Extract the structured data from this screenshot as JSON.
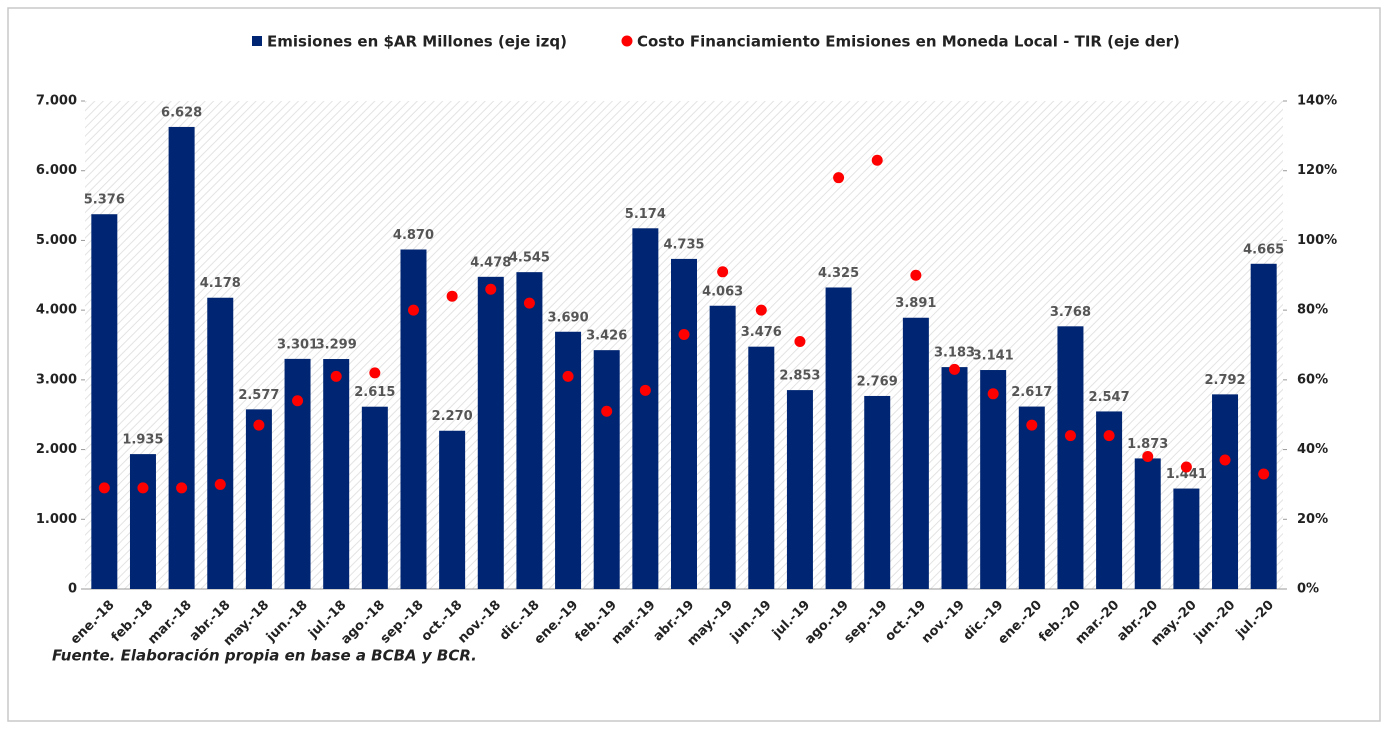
{
  "chart_data": {
    "type": "bar",
    "legend": "top",
    "categories": [
      "ene.-18",
      "feb.-18",
      "mar.-18",
      "abr.-18",
      "may.-18",
      "jun.-18",
      "jul.-18",
      "ago.-18",
      "sep.-18",
      "oct.-18",
      "nov.-18",
      "dic.-18",
      "ene.-19",
      "feb.-19",
      "mar.-19",
      "abr.-19",
      "may.-19",
      "jun.-19",
      "jul.-19",
      "ago.-19",
      "sep.-19",
      "oct.-19",
      "nov.-19",
      "dic.-19",
      "ene.-20",
      "feb.-20",
      "mar.-20",
      "abr.-20",
      "may.-20",
      "jun.-20",
      "jul.-20"
    ],
    "series": [
      {
        "name": "Emisiones en $AR Millones (eje izq)",
        "type": "bar",
        "axis": "y",
        "color": "#002673",
        "values": [
          5376,
          1935,
          6628,
          4178,
          2577,
          3301,
          3299,
          2615,
          4870,
          2270,
          4478,
          4545,
          3690,
          3426,
          5174,
          4735,
          4063,
          3476,
          2853,
          4325,
          2769,
          3891,
          3183,
          3141,
          2617,
          3768,
          2547,
          1873,
          1441,
          2792,
          4665
        ],
        "value_labels": [
          "5.376",
          "1.935",
          "6.628",
          "4.178",
          "2.577",
          "3.301",
          "3.299",
          "2.615",
          "4.870",
          "2.270",
          "4.478",
          "4.545",
          "3.690",
          "3.426",
          "5.174",
          "4.735",
          "4.063",
          "3.476",
          "2.853",
          "4.325",
          "2.769",
          "3.891",
          "3.183",
          "3.141",
          "2.617",
          "3.768",
          "2.547",
          "1.873",
          "1.441",
          "2.792",
          "4.665"
        ]
      },
      {
        "name": "Costo Financiamiento Emisiones en Moneda Local - TIR (eje der)",
        "type": "scatter",
        "axis": "y2",
        "color": "#ff0000",
        "values": [
          29,
          29,
          29,
          30,
          47,
          54,
          61,
          62,
          80,
          84,
          86,
          82,
          61,
          51,
          57,
          73,
          91,
          80,
          71,
          118,
          123,
          90,
          63,
          56,
          47,
          44,
          44,
          38,
          35,
          37,
          33
        ]
      }
    ],
    "ylim": [
      0,
      7000
    ],
    "yticks": [
      0,
      {
        "value": 1000,
        "label": "1.000"
      },
      {
        "value": 2000,
        "label": "2.000"
      },
      {
        "value": 3000,
        "label": "3.000"
      },
      {
        "value": 4000,
        "label": "4.000"
      },
      {
        "value": 5000,
        "label": "5.000"
      },
      {
        "value": 6000,
        "label": "6.000"
      },
      {
        "value": 7000,
        "label": "7.000"
      }
    ],
    "y2lim": [
      0,
      140
    ],
    "y2ticks": [
      {
        "value": 0,
        "label": "0%"
      },
      {
        "value": 20,
        "label": "20%"
      },
      {
        "value": 40,
        "label": "40%"
      },
      {
        "value": 60,
        "label": "60%"
      },
      {
        "value": 80,
        "label": "80%"
      },
      {
        "value": 100,
        "label": "100%"
      },
      {
        "value": 120,
        "label": "120%"
      },
      {
        "value": 140,
        "label": "140%"
      }
    ],
    "source": "Fuente. Elaboración propia en base a BCBA y BCR."
  }
}
